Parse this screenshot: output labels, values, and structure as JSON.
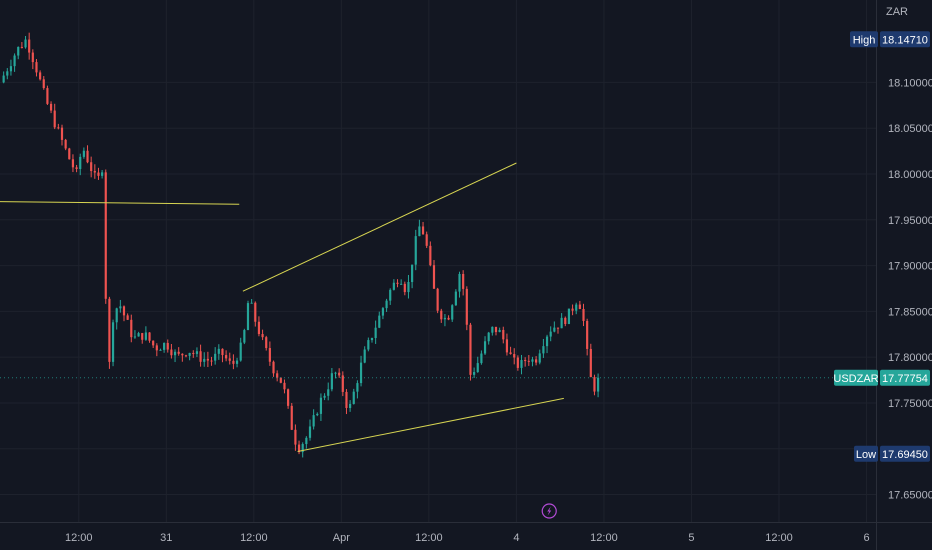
{
  "chart_data": {
    "type": "candlestick",
    "symbol": "USDZAR",
    "currency": "ZAR",
    "colors": {
      "background": "#131722",
      "grid": "#1e222d",
      "up": "#26a69a",
      "down": "#ef5350",
      "trendline": "#d7d552",
      "tag_high_low": "#1e3a6e",
      "tag_current": "#26a69a",
      "axis_text": "#b2b5be",
      "event_icon": "#b34bd6"
    },
    "y_axis": {
      "min": 17.62,
      "max": 18.19,
      "ticks": [
        "18.10000",
        "18.05000",
        "18.00000",
        "17.95000",
        "17.90000",
        "17.85000",
        "17.80000",
        "17.75000",
        "17.65000"
      ]
    },
    "x_axis": {
      "tick_labels": [
        "12:00",
        "31",
        "12:00",
        "Apr",
        "12:00",
        "4",
        "12:00",
        "5",
        "12:00",
        "6"
      ],
      "tick_hours": [
        12,
        24,
        36,
        48,
        60,
        72,
        84,
        96,
        108,
        120
      ],
      "range_hours": [
        1.2,
        121.3
      ]
    },
    "markers": {
      "high": {
        "label": "High",
        "value": "18.14710",
        "price": 18.1471
      },
      "low": {
        "label": "Low",
        "value": "17.69450",
        "price": 17.6945
      },
      "current": {
        "label": "USDZAR",
        "value": "17.77754",
        "price": 17.7775
      }
    },
    "price_path": [
      [
        1.2,
        18.1
      ],
      [
        3.5,
        18.135
      ],
      [
        4.8,
        18.147
      ],
      [
        6.0,
        18.12
      ],
      [
        7.5,
        18.08
      ],
      [
        9.0,
        18.05
      ],
      [
        10.5,
        18.02
      ],
      [
        11.7,
        18.0
      ],
      [
        12.5,
        18.03
      ],
      [
        13.5,
        18.01
      ],
      [
        14.5,
        17.99
      ],
      [
        15.3,
        18.01
      ],
      [
        16.0,
        17.76
      ],
      [
        16.5,
        17.84
      ],
      [
        17.5,
        17.86
      ],
      [
        18.5,
        17.84
      ],
      [
        19.5,
        17.82
      ],
      [
        21.0,
        17.825
      ],
      [
        22.5,
        17.81
      ],
      [
        24.0,
        17.815
      ],
      [
        25.5,
        17.8
      ],
      [
        27.0,
        17.808
      ],
      [
        28.5,
        17.8
      ],
      [
        30.0,
        17.796
      ],
      [
        31.5,
        17.805
      ],
      [
        33.0,
        17.79
      ],
      [
        34.5,
        17.815
      ],
      [
        35.3,
        17.865
      ],
      [
        36.2,
        17.84
      ],
      [
        37.5,
        17.81
      ],
      [
        38.5,
        17.79
      ],
      [
        40.0,
        17.77
      ],
      [
        41.0,
        17.73
      ],
      [
        42.0,
        17.7
      ],
      [
        43.5,
        17.715
      ],
      [
        45.0,
        17.75
      ],
      [
        46.0,
        17.765
      ],
      [
        47.0,
        17.785
      ],
      [
        48.0,
        17.77
      ],
      [
        49.0,
        17.74
      ],
      [
        50.0,
        17.77
      ],
      [
        51.0,
        17.8
      ],
      [
        52.0,
        17.82
      ],
      [
        53.0,
        17.84
      ],
      [
        54.5,
        17.87
      ],
      [
        56.0,
        17.89
      ],
      [
        57.0,
        17.87
      ],
      [
        58.0,
        17.92
      ],
      [
        58.8,
        17.945
      ],
      [
        59.5,
        17.93
      ],
      [
        60.5,
        17.88
      ],
      [
        61.3,
        17.85
      ],
      [
        62.5,
        17.84
      ],
      [
        63.5,
        17.87
      ],
      [
        64.3,
        17.895
      ],
      [
        65.0,
        17.86
      ],
      [
        65.6,
        17.78
      ],
      [
        66.5,
        17.79
      ],
      [
        67.5,
        17.81
      ],
      [
        68.5,
        17.83
      ],
      [
        69.5,
        17.83
      ],
      [
        70.5,
        17.815
      ],
      [
        71.5,
        17.795
      ],
      [
        72.5,
        17.79
      ],
      [
        73.5,
        17.8
      ],
      [
        74.5,
        17.795
      ],
      [
        75.5,
        17.815
      ],
      [
        76.5,
        17.83
      ],
      [
        77.5,
        17.835
      ],
      [
        78.5,
        17.84
      ],
      [
        79.5,
        17.85
      ],
      [
        80.0,
        17.86
      ],
      [
        80.5,
        17.865
      ],
      [
        81.3,
        17.835
      ],
      [
        82.0,
        17.78
      ],
      [
        82.8,
        17.765
      ],
      [
        83.5,
        17.7775
      ]
    ],
    "trendlines": [
      {
        "from": [
          0.0,
          17.97
        ],
        "to": [
          34.0,
          17.967
        ]
      },
      {
        "from": [
          34.5,
          17.872
        ],
        "to": [
          72.0,
          18.012
        ]
      },
      {
        "from": [
          42.0,
          17.697
        ],
        "to": [
          78.5,
          17.755
        ]
      }
    ],
    "event_marker": {
      "hour": 76.5,
      "icon": "lightning-icon"
    }
  }
}
